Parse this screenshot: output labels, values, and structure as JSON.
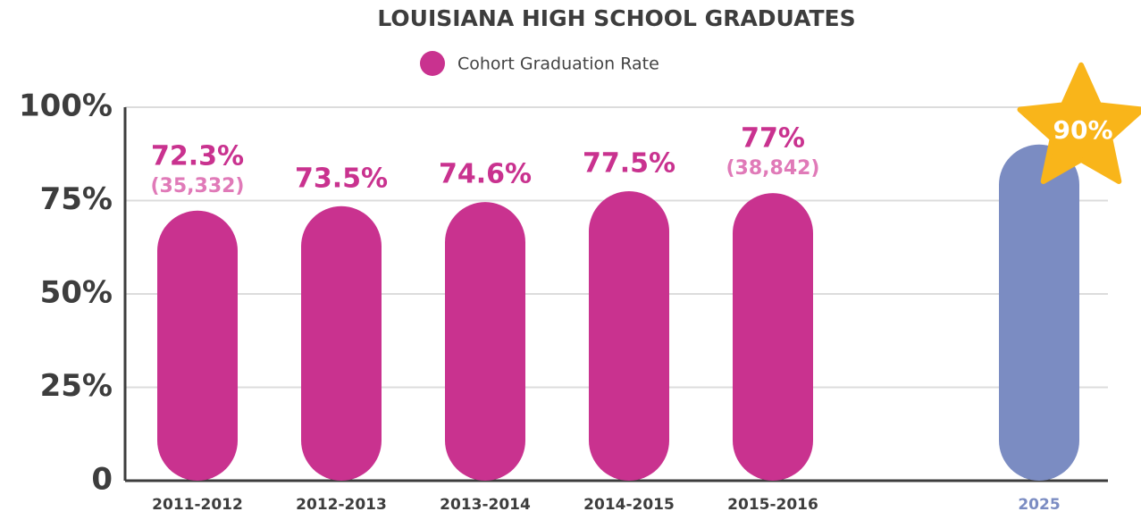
{
  "chart_data": {
    "type": "bar",
    "title": "LOUISIANA HIGH SCHOOL GRADUATES",
    "categories": [
      "2011-2012",
      "2012-2013",
      "2013-2014",
      "2014-2015",
      "2015-2016",
      "2025"
    ],
    "series": [
      {
        "name": "Cohort Graduation Rate",
        "color": "#c9328f",
        "point_colors": [
          "#c9328f",
          "#c9328f",
          "#c9328f",
          "#c9328f",
          "#c9328f",
          "#7b8cc2"
        ],
        "values": [
          72.3,
          73.5,
          74.6,
          77.5,
          77,
          90
        ],
        "value_labels": [
          "72.3%",
          "73.5%",
          "74.6%",
          "77.5%",
          "77%",
          "90%"
        ],
        "count_labels": [
          "(35,332)",
          null,
          null,
          null,
          "(38,842)",
          null
        ]
      }
    ],
    "ylim": [
      0,
      100
    ],
    "yticks": [
      0,
      {
        "value": 25,
        "label": "25%"
      },
      {
        "value": 50,
        "label": "50%"
      },
      {
        "value": 75,
        "label": "75%"
      },
      {
        "value": 100,
        "label": "100%"
      }
    ],
    "grid": true
  }
}
